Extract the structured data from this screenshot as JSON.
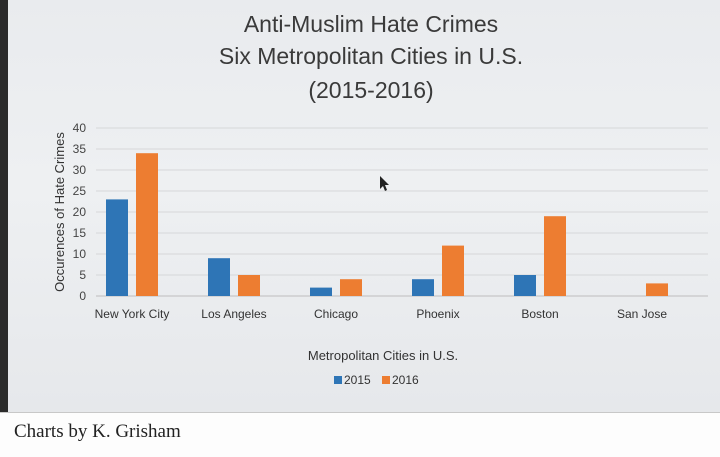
{
  "chart_data": {
    "type": "bar",
    "title_lines": [
      "Anti-Muslim Hate Crimes",
      "Six Metropolitan Cities in U.S.",
      "(2015-2016)"
    ],
    "xlabel": "Metropolitan Cities in U.S.",
    "ylabel": "Occurences of Hate Crimes",
    "ylim": [
      0,
      40
    ],
    "yticks": [
      "0",
      "5",
      "10",
      "15",
      "20",
      "25",
      "30",
      "35",
      "40"
    ],
    "grid": true,
    "legend_position": "bottom",
    "categories": [
      "New York City",
      "Los Angeles",
      "Chicago",
      "Phoenix",
      "Boston",
      "San Jose"
    ],
    "series": [
      {
        "name": "2015",
        "color": "#2e75b6",
        "values": [
          23,
          9,
          2,
          4,
          5,
          0
        ]
      },
      {
        "name": "2016",
        "color": "#ed7d31",
        "values": [
          34,
          5,
          4,
          12,
          19,
          3
        ]
      }
    ]
  },
  "caption": "Charts by K. Grisham"
}
